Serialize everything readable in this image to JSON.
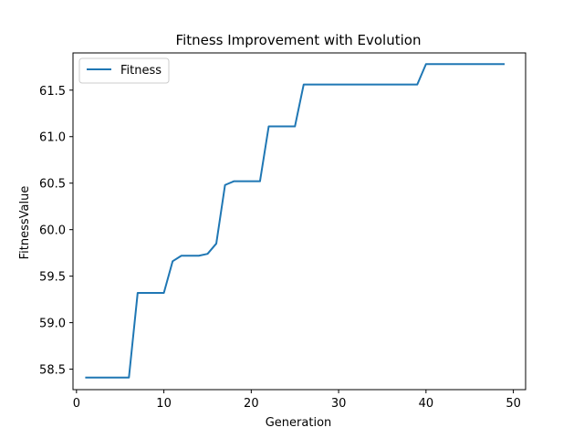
{
  "chart_data": {
    "type": "line",
    "title": "Fitness Improvement with Evolution",
    "xlabel": "Generation",
    "ylabel": "FitnessValue",
    "xlim": [
      -0.4,
      51.4
    ],
    "ylim": [
      58.28,
      61.9
    ],
    "xticks": [
      0,
      10,
      20,
      30,
      40,
      50
    ],
    "yticks": [
      58.5,
      59.0,
      59.5,
      60.0,
      60.5,
      61.0,
      61.5
    ],
    "ytick_labels": [
      "58.5",
      "59.0",
      "59.5",
      "60.0",
      "60.5",
      "61.0",
      "61.5"
    ],
    "grid": false,
    "legend": "top-left",
    "series": [
      {
        "name": "Fitness",
        "color": "#1f77b4",
        "x": [
          1,
          2,
          3,
          4,
          5,
          6,
          7,
          8,
          9,
          10,
          11,
          12,
          13,
          14,
          15,
          16,
          17,
          18,
          19,
          20,
          21,
          22,
          23,
          24,
          25,
          26,
          27,
          28,
          29,
          30,
          31,
          32,
          33,
          34,
          35,
          36,
          37,
          38,
          39,
          40,
          41,
          42,
          43,
          44,
          45,
          46,
          47,
          48,
          49
        ],
        "y": [
          58.41,
          58.41,
          58.41,
          58.41,
          58.41,
          58.41,
          59.32,
          59.32,
          59.32,
          59.32,
          59.66,
          59.72,
          59.72,
          59.72,
          59.74,
          59.85,
          60.48,
          60.52,
          60.52,
          60.52,
          60.52,
          61.11,
          61.11,
          61.11,
          61.11,
          61.56,
          61.56,
          61.56,
          61.56,
          61.56,
          61.56,
          61.56,
          61.56,
          61.56,
          61.56,
          61.56,
          61.56,
          61.56,
          61.56,
          61.78,
          61.78,
          61.78,
          61.78,
          61.78,
          61.78,
          61.78,
          61.78,
          61.78,
          61.78
        ]
      }
    ]
  }
}
